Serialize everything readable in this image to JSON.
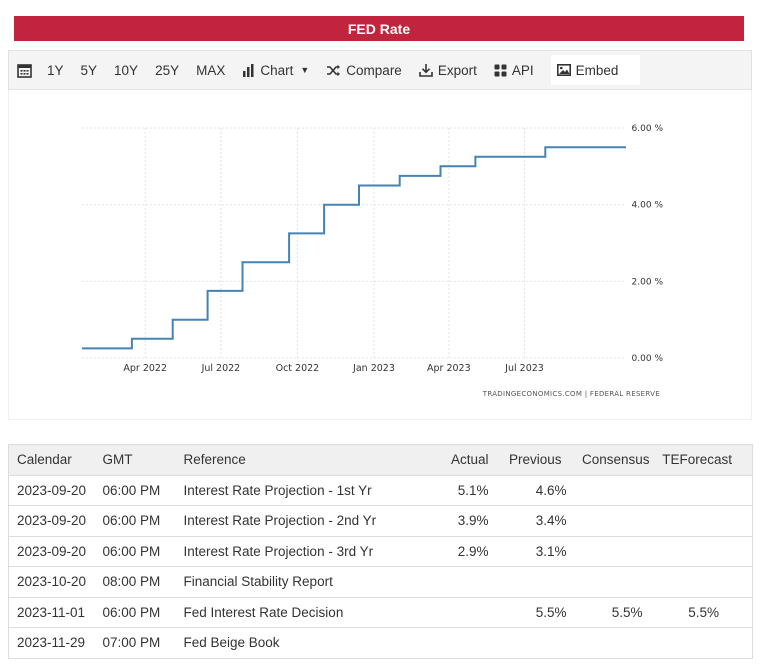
{
  "header": {
    "title": "FED Rate"
  },
  "toolbar": {
    "ranges": [
      "1Y",
      "5Y",
      "10Y",
      "25Y",
      "MAX"
    ],
    "chart_label": "Chart",
    "compare_label": "Compare",
    "export_label": "Export",
    "api_label": "API",
    "embed_label": "Embed"
  },
  "chart_data": {
    "type": "line",
    "title": "",
    "xlabel": "",
    "ylabel": "",
    "x_ticks": [
      "Apr 2022",
      "Jul 2022",
      "Oct 2022",
      "Jan 2023",
      "Apr 2023",
      "Jul 2023"
    ],
    "y_ticks": [
      "0.00 %",
      "2.00 %",
      "4.00 %",
      "6.00 %"
    ],
    "ylim": [
      0,
      6
    ],
    "xlim": [
      "2022-01-15",
      "2023-10-31"
    ],
    "grid": true,
    "series": [
      {
        "color": "#4682b4",
        "step": true,
        "points": [
          {
            "x": "2022-01-15",
            "y": 0.25
          },
          {
            "x": "2022-03-16",
            "y": 0.5
          },
          {
            "x": "2022-05-04",
            "y": 1.0
          },
          {
            "x": "2022-06-15",
            "y": 1.75
          },
          {
            "x": "2022-07-27",
            "y": 2.5
          },
          {
            "x": "2022-09-21",
            "y": 3.25
          },
          {
            "x": "2022-11-02",
            "y": 4.0
          },
          {
            "x": "2022-12-14",
            "y": 4.5
          },
          {
            "x": "2023-02-01",
            "y": 4.75
          },
          {
            "x": "2023-03-22",
            "y": 5.0
          },
          {
            "x": "2023-05-03",
            "y": 5.25
          },
          {
            "x": "2023-07-26",
            "y": 5.5
          },
          {
            "x": "2023-10-31",
            "y": 5.5
          }
        ]
      }
    ],
    "source": "TRADINGECONOMICS.COM  |  FEDERAL RESERVE"
  },
  "calendar": {
    "headers": {
      "calendar": "Calendar",
      "gmt": "GMT",
      "reference": "Reference",
      "actual": "Actual",
      "previous": "Previous",
      "consensus": "Consensus",
      "teforecast": "TEForecast"
    },
    "rows": [
      {
        "date": "2023-09-20",
        "time": "06:00 PM",
        "reference": "Interest Rate Projection - 1st Yr",
        "actual": "5.1%",
        "previous": "4.6%",
        "consensus": "",
        "teforecast": ""
      },
      {
        "date": "2023-09-20",
        "time": "06:00 PM",
        "reference": "Interest Rate Projection - 2nd Yr",
        "actual": "3.9%",
        "previous": "3.4%",
        "consensus": "",
        "teforecast": ""
      },
      {
        "date": "2023-09-20",
        "time": "06:00 PM",
        "reference": "Interest Rate Projection - 3rd Yr",
        "actual": "2.9%",
        "previous": "3.1%",
        "consensus": "",
        "teforecast": ""
      },
      {
        "date": "2023-10-20",
        "time": "08:00 PM",
        "reference": "Financial Stability Report",
        "actual": "",
        "previous": "",
        "consensus": "",
        "teforecast": ""
      },
      {
        "date": "2023-11-01",
        "time": "06:00 PM",
        "reference": "Fed Interest Rate Decision",
        "actual": "",
        "previous": "5.5%",
        "consensus": "5.5%",
        "teforecast": "5.5%"
      },
      {
        "date": "2023-11-29",
        "time": "07:00 PM",
        "reference": "Fed Beige Book",
        "actual": "",
        "previous": "",
        "consensus": "",
        "teforecast": ""
      }
    ]
  }
}
